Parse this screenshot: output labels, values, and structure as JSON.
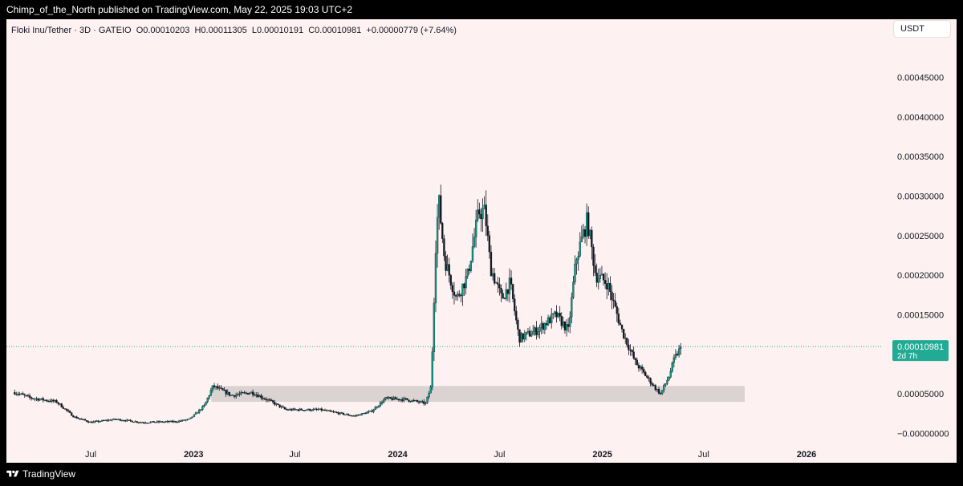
{
  "header": {
    "publisher_line": "Chimp_of_the_North published on TradingView.com, May 22, 2025 19:03 UTC+2"
  },
  "legend": {
    "symbol": "Floki Inu/Tether · 3D · GATEIO",
    "open": "O0.00010203",
    "high": "H0.00011305",
    "low": "L0.00010191",
    "close": "C0.00010981",
    "change": "+0.00000779 (+7.64%)"
  },
  "currency_label": "USDT",
  "price_tag": {
    "price": "0.00010981",
    "countdown": "2d 7h"
  },
  "footer": {
    "brand": "TradingView"
  },
  "colors": {
    "up": "#089981",
    "down": "#f23645",
    "candle_body": "#131722",
    "zone": "#d6cfce",
    "last_price": "#22ab94",
    "background": "#fdf2f1"
  },
  "chart_data": {
    "type": "candlestick",
    "title": "",
    "y_axis_ticks": [
      "0.00045000",
      "0.00040000",
      "0.00035000",
      "0.00030000",
      "0.00025000",
      "0.00020000",
      "0.00015000",
      "0.00005000",
      "−0.00000000"
    ],
    "x_axis_ticks": [
      {
        "label": "Jul",
        "date": "2022-07-01",
        "bold": false
      },
      {
        "label": "2023",
        "date": "2023-01-01",
        "bold": true
      },
      {
        "label": "Jul",
        "date": "2023-07-01",
        "bold": false
      },
      {
        "label": "2024",
        "date": "2024-01-01",
        "bold": true
      },
      {
        "label": "Jul",
        "date": "2024-07-01",
        "bold": false
      },
      {
        "label": "2025",
        "date": "2025-01-01",
        "bold": true
      },
      {
        "label": "Jul",
        "date": "2025-07-01",
        "bold": false
      },
      {
        "label": "2026",
        "date": "2026-01-01",
        "bold": true
      }
    ],
    "last_price": 0.00010981,
    "support_zone": {
      "from": "2023-01-01",
      "to": "2025-10-15",
      "low": 4e-05,
      "high": 6e-05
    },
    "close_path": [
      [
        "2022-02-15",
        5.2e-05
      ],
      [
        "2022-03-15",
        4.5e-05
      ],
      [
        "2022-05-01",
        4e-05
      ],
      [
        "2022-06-01",
        2.1e-05
      ],
      [
        "2022-07-01",
        1.4e-05
      ],
      [
        "2022-08-15",
        1.8e-05
      ],
      [
        "2022-10-01",
        1.4e-05
      ],
      [
        "2022-12-01",
        1.5e-05
      ],
      [
        "2022-12-25",
        1.8e-05
      ],
      [
        "2023-01-20",
        3.5e-05
      ],
      [
        "2023-02-05",
        6e-05
      ],
      [
        "2023-03-10",
        4.8e-05
      ],
      [
        "2023-04-15",
        5.2e-05
      ],
      [
        "2023-05-20",
        4e-05
      ],
      [
        "2023-06-15",
        3e-05
      ],
      [
        "2023-08-15",
        3e-05
      ],
      [
        "2023-10-15",
        2.2e-05
      ],
      [
        "2023-11-15",
        2.8e-05
      ],
      [
        "2023-12-10",
        4.4e-05
      ],
      [
        "2024-01-15",
        4.3e-05
      ],
      [
        "2024-02-20",
        3.8e-05
      ],
      [
        "2024-03-01",
        6e-05
      ],
      [
        "2024-03-05",
        0.00015
      ],
      [
        "2024-03-10",
        0.00026
      ],
      [
        "2024-03-15",
        0.00029
      ],
      [
        "2024-03-25",
        0.00022
      ],
      [
        "2024-04-15",
        0.00017
      ],
      [
        "2024-05-05",
        0.0002
      ],
      [
        "2024-05-25",
        0.00028
      ],
      [
        "2024-06-05",
        0.00028
      ],
      [
        "2024-06-15",
        0.00021
      ],
      [
        "2024-07-05",
        0.00017
      ],
      [
        "2024-07-20",
        0.00019
      ],
      [
        "2024-08-05",
        0.00012
      ],
      [
        "2024-09-05",
        0.00013
      ],
      [
        "2024-10-10",
        0.00015
      ],
      [
        "2024-11-01",
        0.00013
      ],
      [
        "2024-11-15",
        0.00022
      ],
      [
        "2024-12-05",
        0.00027
      ],
      [
        "2024-12-20",
        0.0002
      ],
      [
        "2025-01-10",
        0.00019
      ],
      [
        "2025-02-05",
        0.00013
      ],
      [
        "2025-03-01",
        9e-05
      ],
      [
        "2025-04-05",
        5.8e-05
      ],
      [
        "2025-04-15",
        5e-05
      ],
      [
        "2025-04-30",
        7.2e-05
      ],
      [
        "2025-05-10",
        9.5e-05
      ],
      [
        "2025-05-22",
        0.0001098
      ]
    ]
  }
}
